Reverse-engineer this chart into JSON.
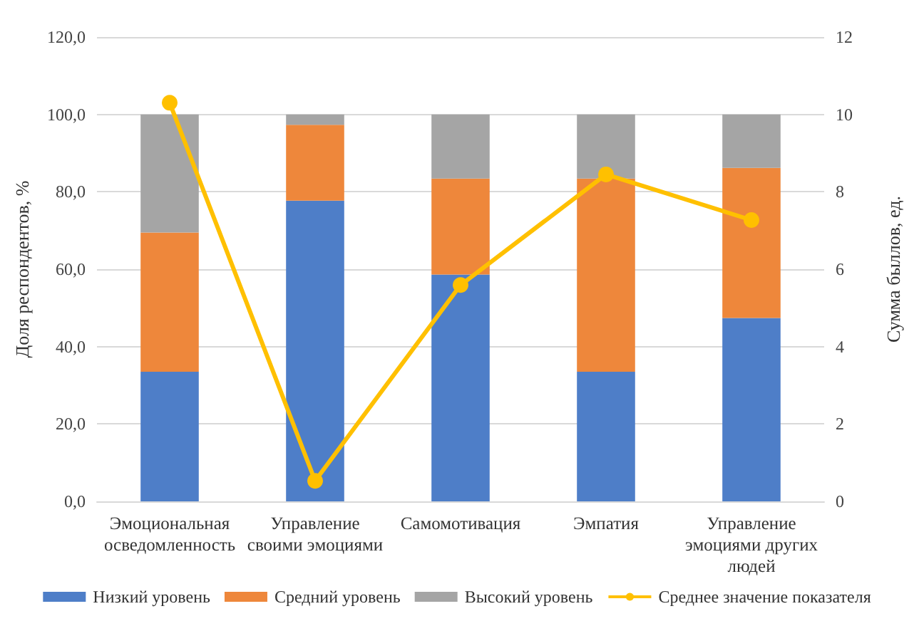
{
  "chart_data": {
    "type": "bar",
    "stacked": true,
    "ylabel": "Доля респондентов, %",
    "y2label": "Сумма быллов, ед.",
    "categories": [
      "Эмоциональная\nосведомленность",
      "Управление\nсвоими эмоциями",
      "Самомотивация",
      "Эмпатия",
      "Управление\nэмоциями других\nлюдей"
    ],
    "series": [
      {
        "name": "Низкий уровень",
        "color": "#4e7ec8",
        "values": [
          33.5,
          77.7,
          58.6,
          33.5,
          47.4
        ]
      },
      {
        "name": "Средний уровень",
        "color": "#ee873b",
        "values": [
          36.0,
          19.6,
          24.8,
          49.9,
          38.8
        ]
      },
      {
        "name": "Высокий уровень",
        "color": "#a5a5a5",
        "values": [
          30.5,
          2.7,
          16.6,
          16.6,
          13.8
        ]
      },
      {
        "name": "Среднее значение показателя",
        "type": "line",
        "axis": "y2",
        "color": "#ffc000",
        "marker": "circle",
        "values": [
          10.3,
          0.53,
          5.59,
          8.45,
          7.27
        ]
      }
    ],
    "ylim": [
      0,
      120
    ],
    "yticks": [
      {
        "value": 0,
        "label": "0,0"
      },
      {
        "value": 20,
        "label": "20,0"
      },
      {
        "value": 40,
        "label": "40,0"
      },
      {
        "value": 60,
        "label": "60,0"
      },
      {
        "value": 80,
        "label": "80,0"
      },
      {
        "value": 100,
        "label": "100,0"
      },
      {
        "value": 120,
        "label": "120,0"
      }
    ],
    "y2lim": [
      0,
      12
    ],
    "y2ticks": [
      0,
      2,
      4,
      6,
      8,
      10,
      12
    ],
    "grid": "y",
    "legend": "bottom"
  }
}
